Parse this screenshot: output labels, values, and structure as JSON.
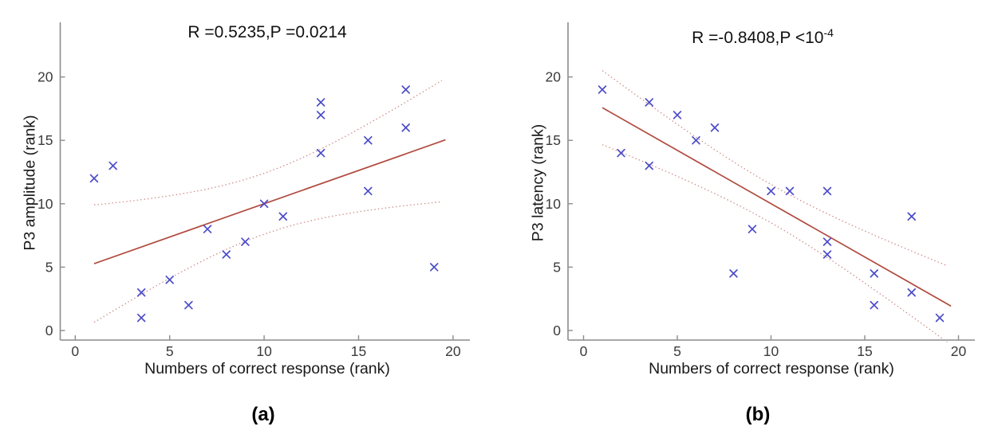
{
  "figure": {
    "background": "#ffffff",
    "captions": {
      "a": "(a)",
      "b": "(b)"
    }
  },
  "colors": {
    "marker": "#4b4cc8",
    "fit_line": "#b04a3e",
    "ci_line": "#cc8a84",
    "spine": "#8c8c8c",
    "tick_label": "#3b3b3b"
  },
  "chart_data": [
    {
      "type": "scatter",
      "panel": "a",
      "title": "R =0.5235,P =0.0214",
      "xlabel": "Numbers of correct response (rank)",
      "ylabel": "P3 amplitude (rank)",
      "caption": "(a)",
      "xlim": [
        -0.8,
        21
      ],
      "ylim": [
        -0.75,
        24.4
      ],
      "xticks": [
        "0",
        "5",
        "10",
        "15",
        "20"
      ],
      "yticks": [
        "0",
        "5",
        "10",
        "15",
        "20"
      ],
      "xtick_values": [
        0,
        5,
        10,
        15,
        20
      ],
      "ytick_values": [
        0,
        5,
        10,
        15,
        20
      ],
      "grid": false,
      "legend": null,
      "marker": "x",
      "points": [
        [
          1,
          12
        ],
        [
          2,
          13
        ],
        [
          3.5,
          3
        ],
        [
          3.5,
          1
        ],
        [
          5,
          4
        ],
        [
          6,
          2
        ],
        [
          7,
          8
        ],
        [
          8,
          6
        ],
        [
          9,
          7
        ],
        [
          10,
          10
        ],
        [
          11,
          9
        ],
        [
          13,
          18
        ],
        [
          13,
          17
        ],
        [
          13,
          14
        ],
        [
          15.5,
          15
        ],
        [
          15.5,
          11
        ],
        [
          17.5,
          19
        ],
        [
          17.5,
          16
        ],
        [
          19,
          5
        ]
      ],
      "fit": {
        "slope": 0.525,
        "intercept": 4.75,
        "x_start": 1,
        "x_end": 19.6
      },
      "ci": {
        "k": 10.47,
        "n": 19,
        "xbar": 10,
        "sxx": 566.5,
        "x_start": 1,
        "x_end": 19.6
      }
    },
    {
      "type": "scatter",
      "panel": "b",
      "title_main": "R =-0.8408,P <10",
      "title_sup": "-4",
      "xlabel": "Numbers of correct response (rank)",
      "ylabel": "P3 latency (rank)",
      "caption": "(b)",
      "xlim": [
        -0.8,
        21
      ],
      "ylim": [
        -0.75,
        24.4
      ],
      "xticks": [
        "0",
        "5",
        "10",
        "15",
        "20"
      ],
      "yticks": [
        "0",
        "5",
        "10",
        "15",
        "20"
      ],
      "xtick_values": [
        0,
        5,
        10,
        15,
        20
      ],
      "ytick_values": [
        0,
        5,
        10,
        15,
        20
      ],
      "grid": false,
      "legend": null,
      "marker": "x",
      "points": [
        [
          1,
          19
        ],
        [
          2,
          14
        ],
        [
          3.5,
          18
        ],
        [
          3.5,
          13
        ],
        [
          5,
          17
        ],
        [
          6,
          15
        ],
        [
          7,
          16
        ],
        [
          8,
          4.5
        ],
        [
          9,
          8
        ],
        [
          10,
          11
        ],
        [
          11,
          11
        ],
        [
          13,
          11
        ],
        [
          13,
          7
        ],
        [
          13,
          6
        ],
        [
          15.5,
          4.5
        ],
        [
          15.5,
          2
        ],
        [
          17.5,
          9
        ],
        [
          17.5,
          3
        ],
        [
          19,
          1
        ]
      ],
      "fit": {
        "slope": -0.8415,
        "intercept": 18.42,
        "x_start": 1,
        "x_end": 19.6
      },
      "ci": {
        "k": 6.6,
        "n": 19,
        "xbar": 10,
        "sxx": 566.5,
        "x_start": 1,
        "x_end": 19.6
      }
    }
  ]
}
